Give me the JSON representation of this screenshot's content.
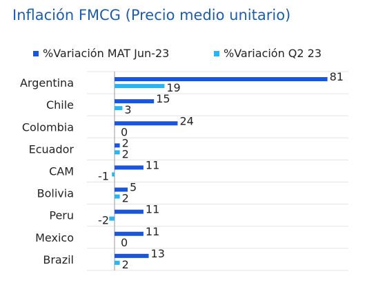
{
  "title": "Inflación FMCG (Precio medio unitario)",
  "colors": {
    "series1": "#1a56db",
    "series2": "#29b6f0",
    "title": "#1f5ca8",
    "grid": "#e3e3e3",
    "axis": "#9a9a9a"
  },
  "chart_data": {
    "type": "bar",
    "orientation": "horizontal",
    "title": "Inflación FMCG (Precio medio unitario)",
    "categories": [
      "Argentina",
      "Chile",
      "Colombia",
      "Ecuador",
      "CAM",
      "Bolivia",
      "Peru",
      "Mexico",
      "Brazil"
    ],
    "series": [
      {
        "name": "%Variación MAT Jun-23",
        "values": [
          81,
          15,
          24,
          2,
          11,
          5,
          11,
          11,
          13
        ]
      },
      {
        "name": "%Variación Q2 23",
        "values": [
          19,
          3,
          0,
          2,
          -1,
          2,
          -2,
          0,
          2
        ]
      }
    ],
    "xlim": [
      -3,
      81
    ],
    "grid": true,
    "legend_position": "top"
  }
}
